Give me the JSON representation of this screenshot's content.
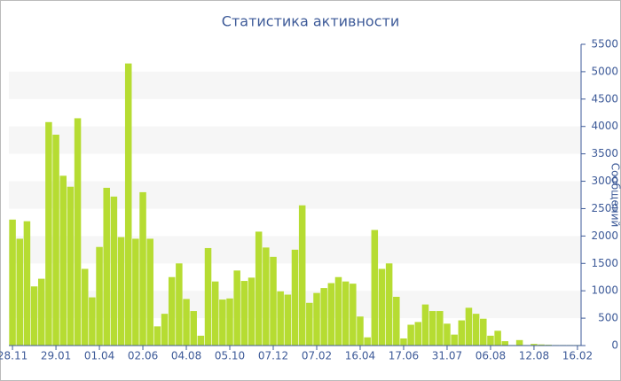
{
  "chart_data": {
    "type": "bar",
    "title": "Статистика активности",
    "y_label": "Сообщений",
    "categories": [
      "28.11",
      null,
      null,
      null,
      null,
      null,
      "29.01",
      null,
      null,
      null,
      null,
      null,
      "01.04",
      null,
      null,
      null,
      null,
      null,
      "02.06",
      null,
      null,
      null,
      null,
      null,
      "04.08",
      null,
      null,
      null,
      null,
      null,
      "05.10",
      null,
      null,
      null,
      null,
      null,
      "07.12",
      null,
      null,
      null,
      null,
      null,
      "07.02",
      null,
      null,
      null,
      null,
      null,
      "16.04",
      null,
      null,
      null,
      null,
      null,
      "17.06",
      null,
      null,
      null,
      null,
      null,
      "31.07",
      null,
      null,
      null,
      null,
      null,
      "06.08",
      null,
      null,
      null,
      null,
      null,
      "12.08",
      null,
      null,
      null,
      null,
      null,
      "16.02"
    ],
    "values": [
      2300,
      1950,
      2270,
      1080,
      1220,
      4080,
      3850,
      3100,
      2900,
      4150,
      1400,
      880,
      1800,
      2880,
      2720,
      1980,
      5150,
      1950,
      2800,
      1950,
      350,
      580,
      1250,
      1500,
      850,
      630,
      180,
      1780,
      1170,
      840,
      860,
      1370,
      1180,
      1240,
      2080,
      1790,
      1620,
      990,
      930,
      1750,
      2560,
      780,
      960,
      1050,
      1140,
      1250,
      1170,
      1130,
      530,
      150,
      2110,
      1400,
      1500,
      890,
      130,
      380,
      430,
      750,
      630,
      630,
      400,
      200,
      460,
      690,
      580,
      490,
      180,
      270,
      80,
      10,
      100,
      10,
      30,
      20,
      15,
      10,
      10,
      10,
      10
    ],
    "color": "#b6dc32",
    "ylim": [
      0,
      5500
    ],
    "yticks": [
      0,
      500,
      1000,
      1500,
      2000,
      2500,
      3000,
      3500,
      4000,
      4500,
      5000,
      5500
    ],
    "y_axis_side": "right",
    "grid_bands": true
  }
}
